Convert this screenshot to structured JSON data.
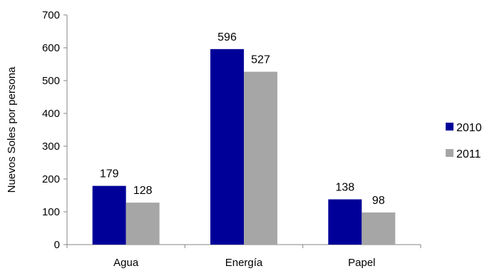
{
  "chart_data": {
    "type": "bar",
    "categories": [
      "Agua",
      "Energía",
      "Papel"
    ],
    "series": [
      {
        "name": "2010",
        "values": [
          179,
          596,
          138
        ],
        "color": "#000099"
      },
      {
        "name": "2011",
        "values": [
          128,
          527,
          98
        ],
        "color": "#A6A6A6"
      }
    ],
    "ylabel": "Nuevos Soles por persona",
    "xlabel": "",
    "title": "",
    "ylim": [
      0,
      700
    ],
    "yticks": [
      0,
      100,
      200,
      300,
      400,
      500,
      600,
      700
    ],
    "grid": false,
    "legend": "right",
    "data_labels": true
  }
}
